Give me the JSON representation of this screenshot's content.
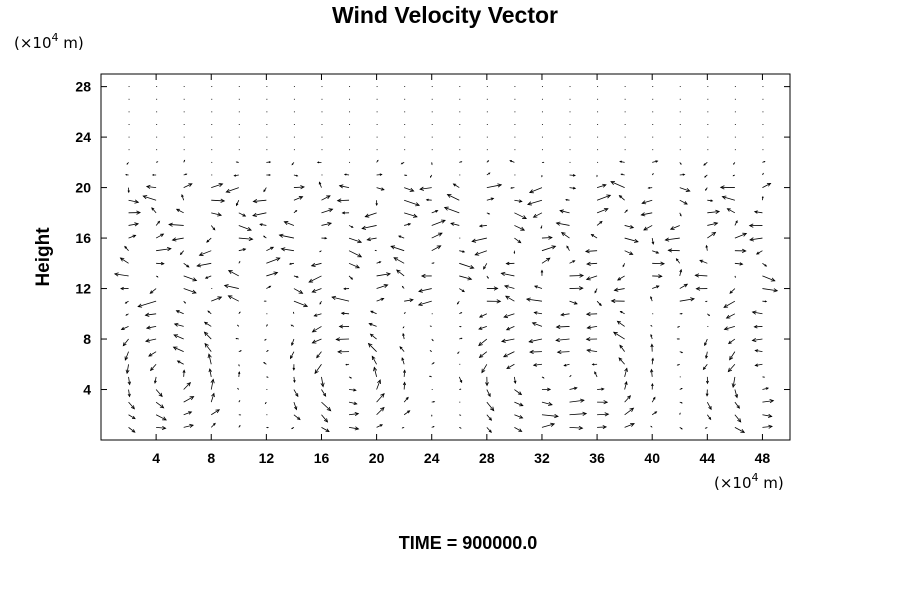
{
  "chart_data": {
    "type": "vector_field",
    "title": "Wind Velocity Vector",
    "ylabel": "Height",
    "y_unit_label": "(×10",
    "y_unit_exp": "4",
    "y_unit_suffix": " m)",
    "x_unit_label": "(×10",
    "x_unit_exp": "4",
    "x_unit_suffix": " m)",
    "xlim": [
      0,
      50
    ],
    "ylim": [
      0,
      29
    ],
    "x_ticks": [
      4,
      8,
      12,
      16,
      20,
      24,
      28,
      32,
      36,
      40,
      44,
      48
    ],
    "y_ticks": [
      4,
      8,
      12,
      16,
      20,
      24,
      28
    ],
    "x_tick_labels": [
      "4",
      "8",
      "12",
      "16",
      "20",
      "24",
      "28",
      "32",
      "36",
      "40",
      "44",
      "48"
    ],
    "y_tick_labels": [
      "4",
      "8",
      "12",
      "16",
      "20",
      "24",
      "28"
    ],
    "grid_x_start": 2,
    "grid_x_step": 2,
    "grid_y_start": 1,
    "grid_y_step": 1,
    "cell_x": 4,
    "cell_x_centers": [
      5,
      18,
      31,
      36,
      48
    ],
    "cell_y_center": 5,
    "cell_half_width": 4,
    "cell_half_height": 5
  },
  "footer": {
    "time_label": "TIME = 900000.0"
  }
}
